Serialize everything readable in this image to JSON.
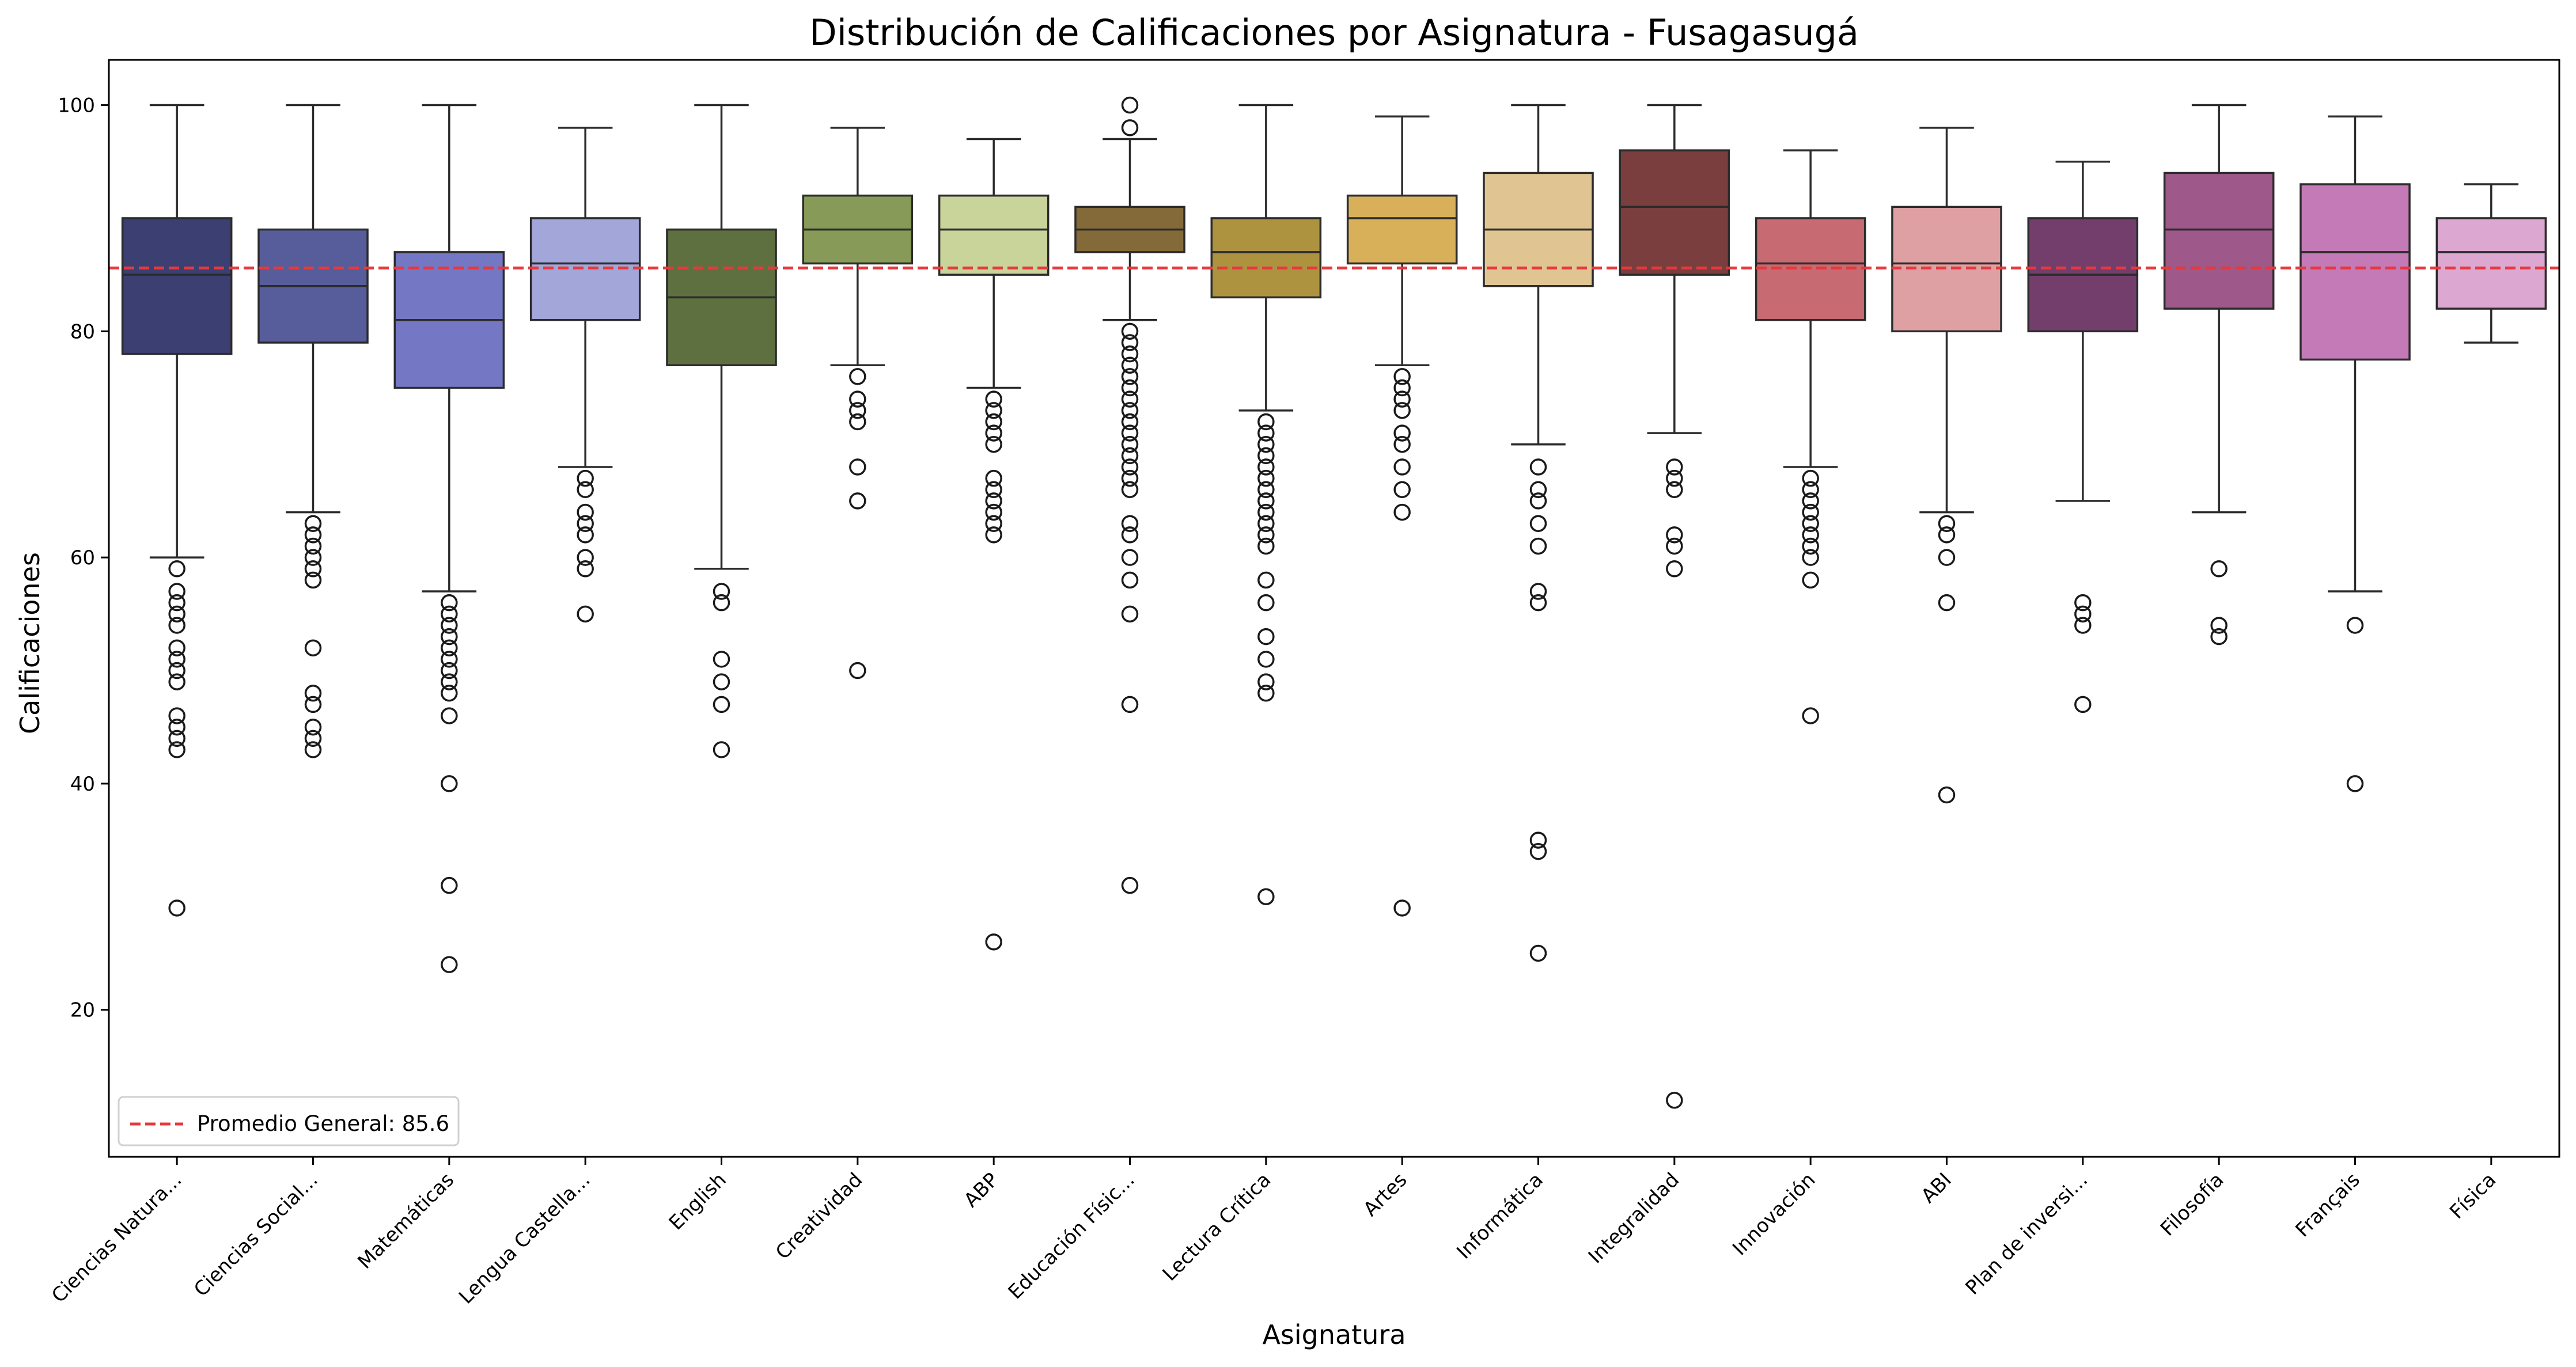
{
  "chart_data": {
    "type": "box",
    "title": "Distribución de Calificaciones por Asignatura - Fusagasugá",
    "xlabel": "Asignatura",
    "ylabel": "Calificaciones",
    "ylim": [
      7,
      104
    ],
    "yticks": [
      20,
      40,
      60,
      80,
      100
    ],
    "grid": false,
    "legend_position": "lower-left",
    "reference_line": {
      "label": "Promedio General: 85.6",
      "value": 85.6,
      "color": "#e8383d",
      "style": "dashed"
    },
    "categories": [
      "Ciencias Natura...",
      "Ciencias Social...",
      "Matemáticas",
      "Lengua Castella...",
      "English",
      "Creatividad",
      "ABP",
      "Educación Físic...",
      "Lectura Crítica",
      "Artes",
      "Informática",
      "Integralidad",
      "Innovación",
      "ABI",
      "Plan de inversi...",
      "Filosofía",
      "Français",
      "Física"
    ],
    "boxes": [
      {
        "whisker_low": 60,
        "q1": 78,
        "median": 85,
        "q3": 90,
        "whisker_high": 100,
        "color": "#3c3f72",
        "outliers": [
          59,
          57,
          56,
          55,
          54,
          52,
          51,
          50,
          49,
          46,
          45,
          44,
          43,
          29
        ]
      },
      {
        "whisker_low": 64,
        "q1": 79,
        "median": 84,
        "q3": 89,
        "whisker_high": 100,
        "color": "#575c9a",
        "outliers": [
          63,
          62,
          61,
          60,
          59,
          58,
          52,
          48,
          47,
          45,
          44,
          43
        ]
      },
      {
        "whisker_low": 57,
        "q1": 75,
        "median": 81,
        "q3": 87,
        "whisker_high": 100,
        "color": "#7478c4",
        "outliers": [
          56,
          55,
          54,
          53,
          52,
          51,
          50,
          49,
          48,
          46,
          40,
          31,
          24
        ]
      },
      {
        "whisker_low": 68,
        "q1": 81,
        "median": 86,
        "q3": 90,
        "whisker_high": 98,
        "color": "#a3a6d8",
        "outliers": [
          67,
          66,
          64,
          63,
          62,
          60,
          59,
          55
        ]
      },
      {
        "whisker_low": 59,
        "q1": 77,
        "median": 83,
        "q3": 89,
        "whisker_high": 100,
        "color": "#5e7040",
        "outliers": [
          57,
          56,
          51,
          49,
          47,
          43
        ]
      },
      {
        "whisker_low": 77,
        "q1": 86,
        "median": 89,
        "q3": 92,
        "whisker_high": 98,
        "color": "#889a57",
        "outliers": [
          76,
          74,
          73,
          72,
          68,
          65,
          50
        ]
      },
      {
        "whisker_low": 75,
        "q1": 85,
        "median": 89,
        "q3": 92,
        "whisker_high": 97,
        "color": "#c9d49b",
        "outliers": [
          74,
          73,
          72,
          71,
          70,
          67,
          66,
          65,
          64,
          63,
          62,
          26
        ]
      },
      {
        "whisker_low": 81,
        "q1": 87,
        "median": 89,
        "q3": 91,
        "whisker_high": 97,
        "color": "#846a39",
        "outliers": [
          100,
          98,
          80,
          79,
          78,
          77,
          76,
          75,
          74,
          73,
          72,
          71,
          70,
          69,
          68,
          67,
          66,
          63,
          62,
          60,
          58,
          55,
          47,
          31
        ]
      },
      {
        "whisker_low": 73,
        "q1": 83,
        "median": 87,
        "q3": 90,
        "whisker_high": 100,
        "color": "#ad9340",
        "outliers": [
          72,
          71,
          70,
          69,
          68,
          67,
          66,
          65,
          64,
          63,
          62,
          61,
          58,
          56,
          53,
          51,
          49,
          48,
          30
        ]
      },
      {
        "whisker_low": 77,
        "q1": 86,
        "median": 90,
        "q3": 92,
        "whisker_high": 99,
        "color": "#d8b05a",
        "outliers": [
          76,
          75,
          74,
          73,
          71,
          70,
          68,
          66,
          64,
          29
        ]
      },
      {
        "whisker_low": 70,
        "q1": 84,
        "median": 89,
        "q3": 94,
        "whisker_high": 100,
        "color": "#e0c593",
        "outliers": [
          68,
          66,
          65,
          63,
          61,
          57,
          56,
          35,
          34,
          25
        ]
      },
      {
        "whisker_low": 71,
        "q1": 85,
        "median": 91,
        "q3": 96,
        "whisker_high": 100,
        "color": "#7a3e3e",
        "outliers": [
          68,
          67,
          66,
          62,
          61,
          59,
          12
        ]
      },
      {
        "whisker_low": 68,
        "q1": 81,
        "median": 86,
        "q3": 90,
        "whisker_high": 96,
        "color": "#c76a71",
        "outliers": [
          67,
          66,
          65,
          64,
          63,
          62,
          61,
          60,
          58,
          46
        ]
      },
      {
        "whisker_low": 64,
        "q1": 80,
        "median": 86,
        "q3": 91,
        "whisker_high": 98,
        "color": "#dfa0a3",
        "outliers": [
          63,
          62,
          60,
          56,
          39
        ]
      },
      {
        "whisker_low": 65,
        "q1": 80,
        "median": 85,
        "q3": 90,
        "whisker_high": 95,
        "color": "#733e6c",
        "outliers": [
          56,
          55,
          54,
          47
        ]
      },
      {
        "whisker_low": 64,
        "q1": 82,
        "median": 89,
        "q3": 94,
        "whisker_high": 100,
        "color": "#9e5889",
        "outliers": [
          59,
          54,
          53
        ]
      },
      {
        "whisker_low": 57,
        "q1": 77.5,
        "median": 87,
        "q3": 93,
        "whisker_high": 99,
        "color": "#c47ab6",
        "outliers": [
          54,
          40
        ]
      },
      {
        "whisker_low": 79,
        "q1": 82,
        "median": 87,
        "q3": 90,
        "whisker_high": 93,
        "color": "#dca8d1",
        "outliers": []
      }
    ]
  }
}
